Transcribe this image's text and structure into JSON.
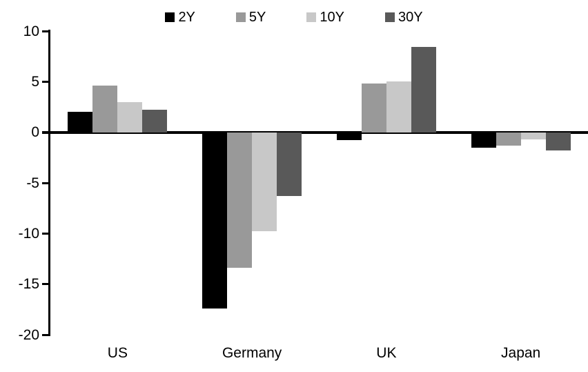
{
  "chart_data": {
    "type": "bar",
    "title": "",
    "xlabel": "",
    "ylabel": "",
    "categories": [
      "US",
      "Germany",
      "UK",
      "Japan"
    ],
    "series": [
      {
        "name": "2Y",
        "color": "#000000",
        "values": [
          2.0,
          -17.4,
          -0.8,
          -1.5
        ]
      },
      {
        "name": "5Y",
        "color": "#999999",
        "values": [
          4.6,
          -13.4,
          4.8,
          -1.3
        ]
      },
      {
        "name": "10Y",
        "color": "#c8c8c8",
        "values": [
          3.0,
          -9.8,
          5.0,
          -0.7
        ]
      },
      {
        "name": "30Y",
        "color": "#595959",
        "values": [
          2.2,
          -6.3,
          8.4,
          -1.8
        ]
      }
    ],
    "ylim": [
      -20,
      10
    ],
    "yticks": [
      10,
      5,
      0,
      -5,
      -10,
      -15,
      -20
    ],
    "grid": false,
    "legend_position": "top",
    "axis_color": "#000000",
    "background_color": "#ffffff"
  }
}
